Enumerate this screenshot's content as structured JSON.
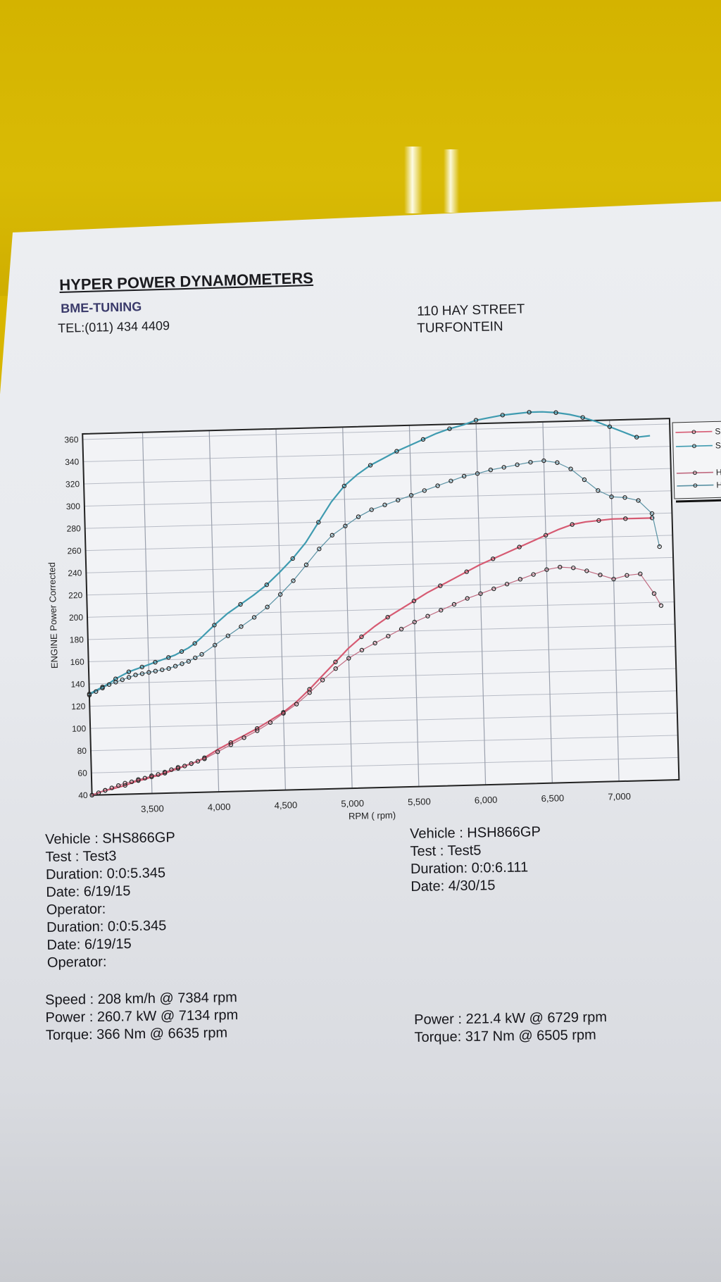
{
  "header": {
    "company": "HYPER POWER DYNAMOMETERS",
    "subtitle": "BME-TUNING",
    "phone": "TEL:(011) 434 4409",
    "address_line1": "110 HAY STREET",
    "address_line2": "TURFONTEIN"
  },
  "chart_data": {
    "type": "line",
    "xlabel": "RPM ( rpm)",
    "ylabel": "ENGINE Power Corrected",
    "xlim": [
      3050,
      7450
    ],
    "ylim": [
      40,
      365
    ],
    "x_ticks": [
      3500,
      4000,
      4500,
      5000,
      5500,
      6000,
      6500,
      7000
    ],
    "x_tick_labels": [
      "3,500",
      "4,000",
      "4,500",
      "5,000",
      "5,500",
      "6,000",
      "6,500",
      "7,000"
    ],
    "y_ticks": [
      40,
      60,
      80,
      100,
      120,
      140,
      160,
      180,
      200,
      220,
      240,
      260,
      280,
      300,
      320,
      340,
      360
    ],
    "legend": [
      "SHS",
      "SHS",
      "HSH",
      "HSH"
    ],
    "legend_position": "right (cropped)",
    "grid": true,
    "series": [
      {
        "name": "SHS",
        "color": "#d65a72",
        "width": 2.2,
        "x": [
          3050,
          3100,
          3150,
          3200,
          3300,
          3350,
          3400,
          3450,
          3500,
          3550,
          3600,
          3650,
          3700,
          3750,
          3800,
          3850,
          3900,
          4000,
          4100,
          4200,
          4300,
          4400,
          4500,
          4600,
          4700,
          4800,
          4900,
          5000,
          5100,
          5200,
          5300,
          5400,
          5500,
          5600,
          5700,
          5800,
          5900,
          6000,
          6100,
          6200,
          6300,
          6400,
          6500,
          6600,
          6700,
          6800,
          6900,
          7000,
          7100,
          7200,
          7300
        ],
        "y": [
          40,
          42,
          44,
          45,
          48,
          50,
          52,
          53,
          55,
          56,
          58,
          60,
          62,
          64,
          66,
          68,
          71,
          78,
          84,
          90,
          96,
          103,
          110,
          119,
          130,
          142,
          154,
          166,
          176,
          185,
          193,
          200,
          207,
          214,
          220,
          226,
          232,
          238,
          243,
          248,
          253,
          258,
          263,
          268,
          272,
          274,
          275,
          276,
          276,
          276,
          276
        ]
      },
      {
        "name": "SHS",
        "color": "#3f9bb0",
        "width": 2.2,
        "x": [
          3050,
          3100,
          3150,
          3200,
          3250,
          3300,
          3350,
          3400,
          3450,
          3500,
          3550,
          3600,
          3650,
          3700,
          3750,
          3800,
          3850,
          3900,
          4000,
          4100,
          4200,
          4300,
          4400,
          4500,
          4600,
          4700,
          4800,
          4900,
          5000,
          5100,
          5200,
          5300,
          5400,
          5500,
          5600,
          5700,
          5800,
          5900,
          6000,
          6100,
          6200,
          6300,
          6400,
          6500,
          6600,
          6700,
          6800,
          6900,
          7000,
          7100,
          7200,
          7300
        ],
        "y": [
          131,
          134,
          137,
          140,
          144,
          147,
          150,
          152,
          154,
          156,
          158,
          160,
          162,
          164,
          167,
          170,
          174,
          179,
          190,
          200,
          208,
          216,
          225,
          236,
          248,
          262,
          280,
          298,
          312,
          322,
          330,
          336,
          342,
          347,
          352,
          357,
          361,
          364,
          368,
          370,
          372,
          373,
          374,
          374,
          373,
          371,
          368,
          364,
          359,
          354,
          349,
          350
        ]
      },
      {
        "name": "HSH",
        "color": "#c06a80",
        "width": 1.2,
        "x": [
          3050,
          3100,
          3150,
          3200,
          3250,
          3300,
          3350,
          3400,
          3450,
          3500,
          3550,
          3600,
          3650,
          3700,
          3750,
          3800,
          3850,
          3900,
          4000,
          4100,
          4200,
          4300,
          4400,
          4500,
          4600,
          4700,
          4800,
          4900,
          5000,
          5100,
          5200,
          5300,
          5400,
          5500,
          5600,
          5700,
          5800,
          5900,
          6000,
          6100,
          6200,
          6300,
          6400,
          6500,
          6600,
          6700,
          6800,
          6900,
          7000,
          7100,
          7200,
          7300,
          7350
        ],
        "y": [
          40,
          42,
          44,
          46,
          48,
          50,
          51,
          53,
          54,
          56,
          57,
          59,
          61,
          63,
          64,
          66,
          68,
          70,
          76,
          82,
          88,
          94,
          101,
          109,
          117,
          127,
          138,
          148,
          157,
          164,
          170,
          176,
          182,
          188,
          193,
          198,
          203,
          208,
          212,
          216,
          220,
          224,
          228,
          232,
          234,
          233,
          230,
          226,
          222,
          225,
          226,
          208,
          197
        ]
      },
      {
        "name": "HSH",
        "color": "#5a92a4",
        "width": 1.2,
        "x": [
          3050,
          3100,
          3150,
          3200,
          3250,
          3300,
          3350,
          3400,
          3450,
          3500,
          3550,
          3600,
          3650,
          3700,
          3750,
          3800,
          3850,
          3900,
          4000,
          4100,
          4200,
          4300,
          4400,
          4500,
          4600,
          4700,
          4800,
          4900,
          5000,
          5100,
          5200,
          5300,
          5400,
          5500,
          5600,
          5700,
          5800,
          5900,
          6000,
          6100,
          6200,
          6300,
          6400,
          6500,
          6600,
          6700,
          6800,
          6900,
          7000,
          7100,
          7200,
          7300,
          7350
        ],
        "y": [
          130,
          133,
          136,
          139,
          141,
          143,
          145,
          147,
          148,
          149,
          150,
          151,
          152,
          154,
          156,
          158,
          161,
          164,
          172,
          180,
          188,
          196,
          205,
          216,
          228,
          242,
          256,
          268,
          276,
          284,
          290,
          294,
          298,
          302,
          306,
          310,
          314,
          318,
          320,
          323,
          325,
          327,
          329,
          330,
          328,
          322,
          312,
          302,
          296,
          295,
          292,
          280,
          250
        ]
      }
    ]
  },
  "run_left": {
    "vehicle": "Vehicle : SHS866GP",
    "test": "Test    : Test3",
    "duration": "Duration: 0:0:5.345",
    "date": "Date:  6/19/15",
    "operator": "Operator:",
    "duration2": "Duration: 0:0:5.345",
    "date2": "Date:  6/19/15",
    "operator2": "Operator:",
    "speed": "Speed : 208 km/h @ 7384 rpm",
    "power": "Power : 260.7 kW @ 7134 rpm",
    "torque": "Torque: 366 Nm @ 6635 rpm"
  },
  "run_right": {
    "vehicle": "Vehicle : HSH866GP",
    "test": "Test    : Test5",
    "duration": "Duration: 0:0:6.111",
    "date": "Date:  4/30/15",
    "power": "Power : 221.4 kW @ 6729 rpm",
    "torque": "Torque: 317 Nm @ 6505 rpm"
  }
}
